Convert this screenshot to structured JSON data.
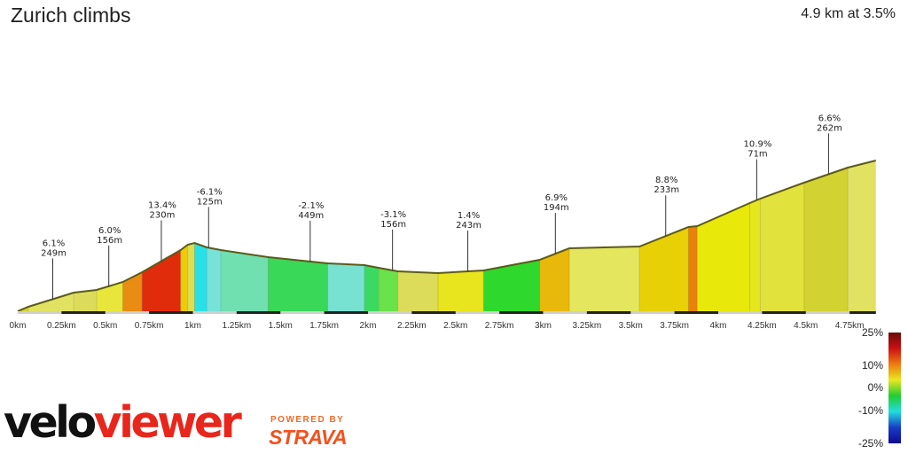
{
  "header": {
    "title": "Zurich climbs",
    "summary": "4.9 km at 3.5%"
  },
  "branding": {
    "velo": "velo",
    "viewer": "viewer",
    "powered_by": "POWERED BY",
    "strava": "STRAVA"
  },
  "chart_data": {
    "type": "area",
    "xlabel": "",
    "ylabel": "",
    "x_ticks": [
      "0km",
      "0.25km",
      "0.5km",
      "0.75km",
      "1km",
      "1.25km",
      "1.5km",
      "1.75km",
      "2km",
      "2.25km",
      "2.5km",
      "2.75km",
      "3km",
      "3.25km",
      "3.5km",
      "3.75km",
      "4km",
      "4.25km",
      "4.5km",
      "4.75km"
    ],
    "x_range_km": [
      0,
      4.9
    ],
    "elevation_profile": [
      {
        "km": 0.0,
        "rel": 0
      },
      {
        "km": 0.06,
        "rel": 5
      },
      {
        "km": 0.32,
        "rel": 21
      },
      {
        "km": 0.45,
        "rel": 24
      },
      {
        "km": 0.6,
        "rel": 33
      },
      {
        "km": 0.71,
        "rel": 44
      },
      {
        "km": 0.93,
        "rel": 69
      },
      {
        "km": 0.97,
        "rel": 75
      },
      {
        "km": 1.01,
        "rel": 77
      },
      {
        "km": 1.08,
        "rel": 72
      },
      {
        "km": 1.16,
        "rel": 69
      },
      {
        "km": 1.43,
        "rel": 61
      },
      {
        "km": 1.77,
        "rel": 54
      },
      {
        "km": 1.98,
        "rel": 52
      },
      {
        "km": 2.06,
        "rel": 49
      },
      {
        "km": 2.17,
        "rel": 45
      },
      {
        "km": 2.4,
        "rel": 43
      },
      {
        "km": 2.66,
        "rel": 46
      },
      {
        "km": 2.98,
        "rel": 58
      },
      {
        "km": 3.15,
        "rel": 71
      },
      {
        "km": 3.55,
        "rel": 73
      },
      {
        "km": 3.83,
        "rel": 95
      },
      {
        "km": 3.88,
        "rel": 96
      },
      {
        "km": 4.18,
        "rel": 122
      },
      {
        "km": 4.24,
        "rel": 127
      },
      {
        "km": 4.49,
        "rel": 145
      },
      {
        "km": 4.74,
        "rel": 162
      },
      {
        "km": 4.9,
        "rel": 170
      }
    ],
    "segment_colors": [
      "#d2d232",
      "#e2e262",
      "#dcdc5a",
      "#e8e63a",
      "#e88c12",
      "#e02c0a",
      "#eccc0a",
      "#dede50",
      "#26e2e8",
      "#78e2d8",
      "#70e0b0",
      "#3ad858",
      "#78e2d2",
      "#3ada62",
      "#6ae24a",
      "#dcdc5a",
      "#e8e41e",
      "#2ed82c",
      "#e8b80a",
      "#e4e65e",
      "#e8d006",
      "#e8820a",
      "#e8e80a",
      "#e6e61e",
      "#e2e23c"
    ],
    "annotations": [
      {
        "km": 0.2,
        "grade": "6.1%",
        "length": "249m"
      },
      {
        "km": 0.52,
        "grade": "6.0%",
        "length": "156m"
      },
      {
        "km": 0.82,
        "grade": "13.4%",
        "length": "230m"
      },
      {
        "km": 1.09,
        "grade": "-6.1%",
        "length": "125m"
      },
      {
        "km": 1.67,
        "grade": "-2.1%",
        "length": "449m"
      },
      {
        "km": 2.14,
        "grade": "-3.1%",
        "length": "156m"
      },
      {
        "km": 2.57,
        "grade": "1.4%",
        "length": "243m"
      },
      {
        "km": 3.07,
        "grade": "6.9%",
        "length": "194m"
      },
      {
        "km": 3.7,
        "grade": "8.8%",
        "length": "233m"
      },
      {
        "km": 4.22,
        "grade": "10.9%",
        "length": "71m"
      },
      {
        "km": 4.63,
        "grade": "6.6%",
        "length": "262m"
      }
    ],
    "legend": {
      "labels": [
        "25%",
        "10%",
        "0%",
        "-10%",
        "-25%"
      ],
      "stops": [
        25,
        10,
        0,
        -10,
        -25
      ],
      "colors": [
        "#6a0a0a",
        "#cc1010",
        "#ee7a10",
        "#e8e820",
        "#22cc33",
        "#22dddd",
        "#1a3cc8",
        "#0a0a90"
      ]
    }
  }
}
